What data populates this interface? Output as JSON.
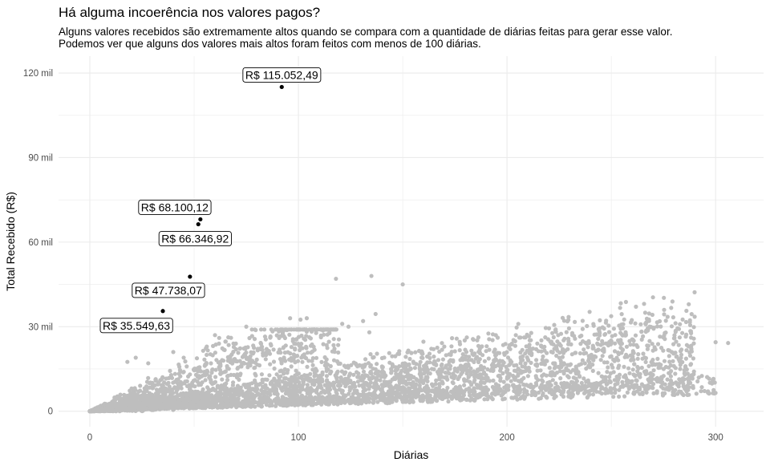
{
  "chart_data": {
    "type": "scatter",
    "title": "Há alguma incoerência nos valores pagos?",
    "subtitle": [
      "Alguns valores recebidos são extremamente altos quando se compara com a quantidade de diárias feitas para gerar esse valor.",
      "Podemos ver que alguns dos valores mais altos foram feitos com menos de 100 diárias."
    ],
    "xlabel": "Diárias",
    "ylabel": "Total Recebido (R$)",
    "xlim": [
      -15,
      323
    ],
    "ylim": [
      -5500,
      126000
    ],
    "x_ticks": [
      0,
      100,
      200,
      300
    ],
    "x_tick_labels": [
      "0",
      "100",
      "200",
      "300"
    ],
    "y_ticks": [
      0,
      30000,
      60000,
      90000,
      120000
    ],
    "y_tick_labels": [
      "0",
      "30 mil",
      "60 mil",
      "90 mil",
      "120 mil"
    ],
    "grid": true,
    "colors": {
      "points": "#bebebe",
      "highlight": "#000000",
      "grid": "#ebebeb"
    },
    "highlighted": [
      {
        "x": 92,
        "y": 115052.49,
        "label": "R$ 115.052,49"
      },
      {
        "x": 53,
        "y": 68100.12,
        "label": "R$  68.100,12"
      },
      {
        "x": 52,
        "y": 66346.92,
        "label": "R$  66.346,92"
      },
      {
        "x": 48,
        "y": 47738.07,
        "label": "R$  47.738,07"
      },
      {
        "x": 35,
        "y": 35549.63,
        "label": "R$  35.549,63"
      }
    ],
    "outliers": [
      [
        118,
        47000
      ],
      [
        135,
        48000
      ],
      [
        150,
        45000
      ],
      [
        131,
        32000
      ],
      [
        124,
        30000
      ],
      [
        121,
        31000
      ],
      [
        104,
        33000
      ],
      [
        101,
        32500
      ],
      [
        96,
        33000
      ],
      [
        75,
        30000
      ],
      [
        87,
        29000
      ],
      [
        134,
        28000
      ],
      [
        137,
        34500
      ],
      [
        84,
        26500
      ],
      [
        60,
        27000
      ],
      [
        62,
        26000
      ],
      [
        300,
        24500
      ],
      [
        306,
        24200
      ],
      [
        287,
        23000
      ],
      [
        279,
        21000
      ],
      [
        274,
        22500
      ],
      [
        270,
        21500
      ],
      [
        260,
        25500
      ],
      [
        246,
        24000
      ],
      [
        235,
        26500
      ],
      [
        228,
        21500
      ],
      [
        218,
        21500
      ],
      [
        214,
        22000
      ],
      [
        250,
        19500
      ],
      [
        242,
        19500
      ],
      [
        268,
        16000
      ],
      [
        278,
        13500
      ],
      [
        263,
        13000
      ],
      [
        283,
        15000
      ],
      [
        22,
        19000
      ],
      [
        18,
        17500
      ],
      [
        45,
        19000
      ],
      [
        56,
        20000
      ],
      [
        40,
        21000
      ],
      [
        70,
        24000
      ],
      [
        82,
        22000
      ],
      [
        28,
        17000
      ]
    ]
  }
}
